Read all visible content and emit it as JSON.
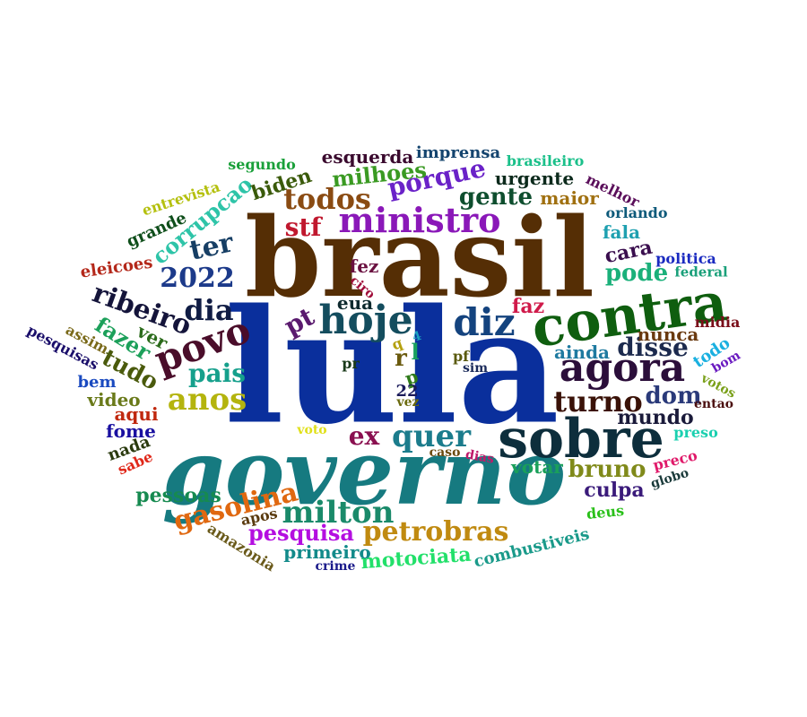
{
  "title": "",
  "words": [
    {
      "id": "lula",
      "text": "lula",
      "color": "#0a2f9c"
    },
    {
      "id": "brasil",
      "text": "brasil",
      "color": "#552e05"
    },
    {
      "id": "governo",
      "text": "governo",
      "color": "#167a80"
    },
    {
      "id": "contra",
      "text": "contra",
      "color": "#0f5e0f"
    },
    {
      "id": "sobre",
      "text": "sobre",
      "color": "#0d2e3c"
    },
    {
      "id": "agora",
      "text": "agora",
      "color": "#2b0e3a"
    },
    {
      "id": "ministro",
      "text": "ministro",
      "color": "#8a18b8"
    },
    {
      "id": "hoje",
      "text": "hoje",
      "color": "#144d5e"
    },
    {
      "id": "diz",
      "text": "diz",
      "color": "#14437e"
    },
    {
      "id": "povo",
      "text": "povo",
      "color": "#4a0d2a"
    },
    {
      "id": "todos",
      "text": "todos",
      "color": "#8a4b12"
    },
    {
      "id": "quer",
      "text": "quer",
      "color": "#1b7c8c"
    },
    {
      "id": "milton",
      "text": "milton",
      "color": "#1a8a6a"
    },
    {
      "id": "petrobras",
      "text": "petrobras",
      "color": "#c08a10"
    },
    {
      "id": "gasolina",
      "text": "gasolina",
      "color": "#e06810"
    },
    {
      "id": "anos",
      "text": "anos",
      "color": "#b4b40e"
    },
    {
      "id": "turno",
      "text": "turno",
      "color": "#3a1208"
    },
    {
      "id": "disse",
      "text": "disse",
      "color": "#1c2a4e"
    },
    {
      "id": "ribeiro",
      "text": "ribeiro",
      "color": "#14143a"
    },
    {
      "id": "dia",
      "text": "dia",
      "color": "#101c44"
    },
    {
      "id": "2022",
      "text": "2022",
      "color": "#1c3a8a"
    },
    {
      "id": "pais",
      "text": "pais",
      "color": "#16a08c"
    },
    {
      "id": "stf",
      "text": "stf",
      "color": "#c0182e"
    },
    {
      "id": "pt",
      "text": "pt",
      "color": "#5a1a6e"
    },
    {
      "id": "porque",
      "text": "porque",
      "color": "#6a22c8"
    },
    {
      "id": "gente",
      "text": "gente",
      "color": "#0e4e2e"
    },
    {
      "id": "ter",
      "text": "ter",
      "color": "#163e64"
    },
    {
      "id": "corrupcao",
      "text": "corrupcao",
      "color": "#2ec4a8"
    },
    {
      "id": "tudo",
      "text": "tudo",
      "color": "#4a5a0c"
    },
    {
      "id": "fazer",
      "text": "fazer",
      "color": "#1ca05a"
    },
    {
      "id": "ex",
      "text": "ex",
      "color": "#8a1050"
    },
    {
      "id": "bruno",
      "text": "bruno",
      "color": "#808a1a"
    },
    {
      "id": "pode",
      "text": "pode",
      "color": "#1ab07a"
    },
    {
      "id": "dom",
      "text": "dom",
      "color": "#2a3a7a"
    },
    {
      "id": "mundo",
      "text": "mundo",
      "color": "#1a1a3a"
    },
    {
      "id": "culpa",
      "text": "culpa",
      "color": "#3a1a7a"
    },
    {
      "id": "pesquisa",
      "text": "pesquisa",
      "color": "#b40ee0"
    },
    {
      "id": "motociata",
      "text": "motociata",
      "color": "#22e06a"
    },
    {
      "id": "primeiro",
      "text": "primeiro",
      "color": "#128a8a"
    },
    {
      "id": "pessoas",
      "text": "pessoas",
      "color": "#168a50"
    },
    {
      "id": "milhoes",
      "text": "milhoes",
      "color": "#3a9a22"
    },
    {
      "id": "esquerda",
      "text": "esquerda",
      "color": "#3a0a2e"
    },
    {
      "id": "imprensa",
      "text": "imprensa",
      "color": "#14446e"
    },
    {
      "id": "urgente",
      "text": "urgente",
      "color": "#0c2a1c"
    },
    {
      "id": "biden",
      "text": "biden",
      "color": "#3a5a0a"
    },
    {
      "id": "maior",
      "text": "maior",
      "color": "#a07010"
    },
    {
      "id": "cara",
      "text": "cara",
      "color": "#3a0e4e"
    },
    {
      "id": "fala",
      "text": "fala",
      "color": "#1ea0b0"
    },
    {
      "id": "nunca",
      "text": "nunca",
      "color": "#6a3a10"
    },
    {
      "id": "ainda",
      "text": "ainda",
      "color": "#1e7aa0"
    },
    {
      "id": "faz",
      "text": "faz",
      "color": "#d01a4a"
    },
    {
      "id": "ver",
      "text": "ver",
      "color": "#2a6a1a"
    },
    {
      "id": "aqui",
      "text": "aqui",
      "color": "#c0280e"
    },
    {
      "id": "votar",
      "text": "votar",
      "color": "#1aa05a"
    },
    {
      "id": "eua",
      "text": "eua",
      "color": "#0e2a2e"
    },
    {
      "id": "fez",
      "text": "fez",
      "color": "#6a1040"
    },
    {
      "id": "r",
      "text": "r",
      "color": "#6a5a0e"
    },
    {
      "id": "l",
      "text": "l",
      "color": "#1aa060"
    },
    {
      "id": "p",
      "text": "p",
      "color": "#2e7a1a"
    },
    {
      "id": "q",
      "text": "q",
      "color": "#b4a00e"
    },
    {
      "id": "4",
      "text": "4",
      "color": "#1aa0c0"
    },
    {
      "id": "22",
      "text": "22",
      "color": "#1a1a5a"
    },
    {
      "id": "vez",
      "text": "vez",
      "color": "#6a6a0e"
    },
    {
      "id": "pr",
      "text": "pr",
      "color": "#1a3a1a"
    },
    {
      "id": "pf",
      "text": "pf",
      "color": "#5a5a0e"
    },
    {
      "id": "sim",
      "text": "sim",
      "color": "#1a2a5a"
    },
    {
      "id": "ciro",
      "text": "ciro",
      "color": "#a00e3a"
    },
    {
      "id": "video",
      "text": "video",
      "color": "#6a7a1a"
    },
    {
      "id": "bem",
      "text": "bem",
      "color": "#1a4ac0"
    },
    {
      "id": "fome",
      "text": "fome",
      "color": "#1a10a0"
    },
    {
      "id": "nada",
      "text": "nada",
      "color": "#2a3a0e"
    },
    {
      "id": "sabe",
      "text": "sabe",
      "color": "#e0281a"
    },
    {
      "id": "eleicoes",
      "text": "eleicoes",
      "color": "#b4281a"
    },
    {
      "id": "grande",
      "text": "grande",
      "color": "#0e4e1a"
    },
    {
      "id": "entrevista",
      "text": "entrevista",
      "color": "#b4c00e"
    },
    {
      "id": "segundo",
      "text": "segundo",
      "color": "#1aa03a"
    },
    {
      "id": "assim",
      "text": "assim",
      "color": "#7a6a1a"
    },
    {
      "id": "pesquisas",
      "text": "pesquisas",
      "color": "#1a0e6a"
    },
    {
      "id": "brasileiro",
      "text": "brasileiro",
      "color": "#1ac08a"
    },
    {
      "id": "melhor",
      "text": "melhor",
      "color": "#5a0e5a"
    },
    {
      "id": "orlando",
      "text": "orlando",
      "color": "#0e5a7a"
    },
    {
      "id": "politica",
      "text": "politica",
      "color": "#1a2ac0"
    },
    {
      "id": "federal",
      "text": "federal",
      "color": "#1aa07a"
    },
    {
      "id": "midia",
      "text": "midia",
      "color": "#7a0e1a"
    },
    {
      "id": "todo",
      "text": "todo",
      "color": "#1ab0e0"
    },
    {
      "id": "bom",
      "text": "bom",
      "color": "#6a1ac0"
    },
    {
      "id": "votos",
      "text": "votos",
      "color": "#7aa01a"
    },
    {
      "id": "entao",
      "text": "entao",
      "color": "#4a0e0e"
    },
    {
      "id": "preso",
      "text": "preso",
      "color": "#1ad0b0"
    },
    {
      "id": "preco",
      "text": "preco",
      "color": "#e01a6a"
    },
    {
      "id": "globo",
      "text": "globo",
      "color": "#1a3a3a"
    },
    {
      "id": "deus",
      "text": "deus",
      "color": "#2ac01a"
    },
    {
      "id": "combustiveis",
      "text": "combustiveis",
      "color": "#1a9a8a"
    },
    {
      "id": "caso",
      "text": "caso",
      "color": "#6a4a0e"
    },
    {
      "id": "dias",
      "text": "dias",
      "color": "#c01a6a"
    },
    {
      "id": "voto",
      "text": "voto",
      "color": "#e0e01a"
    },
    {
      "id": "apos",
      "text": "apos",
      "color": "#5a3a0e"
    },
    {
      "id": "amazonia",
      "text": "amazonia",
      "color": "#6a5a1a"
    },
    {
      "id": "crime",
      "text": "crime",
      "color": "#1a1a8a"
    }
  ]
}
